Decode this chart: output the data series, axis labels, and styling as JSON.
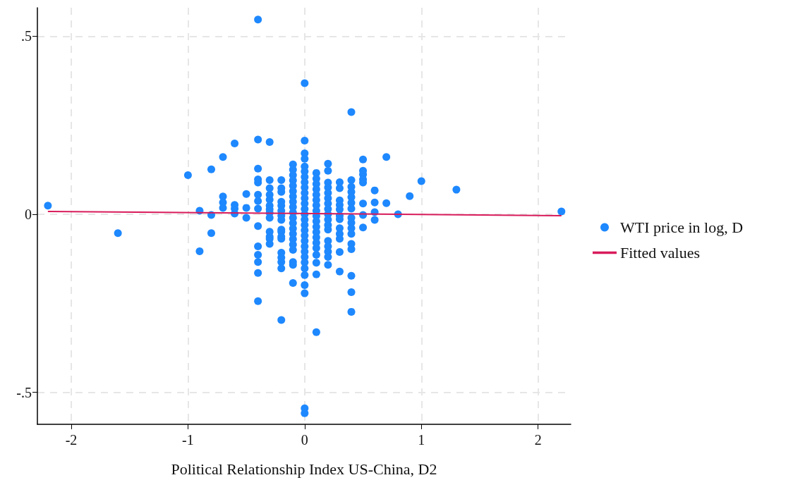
{
  "chart_data": {
    "type": "scatter",
    "xlabel": "Political Relationship Index US-China, D2",
    "xlim": [
      -2.29,
      2.28
    ],
    "xticks": [
      -2,
      -1,
      0,
      1,
      2
    ],
    "ylim": [
      -0.59,
      0.58
    ],
    "yticks": [
      {
        "value": -0.5,
        "label": "-.5"
      },
      0,
      {
        "value": 0.5,
        "label": ".5"
      }
    ],
    "grid": true,
    "legend": "right",
    "series": [
      {
        "name": "WTI price in log, D",
        "marker": "circle",
        "color": "#1e88ff",
        "x": [
          -2.2,
          -1.6,
          -1.0,
          -0.9,
          -0.9,
          -0.8,
          -0.8,
          -0.8,
          -0.7,
          -0.7,
          -0.7,
          -0.7,
          -0.6,
          -0.6,
          -0.6,
          -0.6,
          -0.5,
          -0.5,
          -0.5,
          -0.4,
          -0.4,
          -0.4,
          -0.4,
          -0.4,
          -0.4,
          -0.4,
          -0.4,
          -0.4,
          -0.4,
          -0.4,
          -0.4,
          -0.4,
          -0.4,
          -0.3,
          -0.3,
          -0.3,
          -0.3,
          -0.3,
          -0.3,
          -0.3,
          -0.3,
          -0.3,
          -0.3,
          -0.3,
          -0.3,
          -0.3,
          -0.2,
          -0.2,
          -0.2,
          -0.2,
          -0.2,
          -0.2,
          -0.2,
          -0.2,
          -0.2,
          -0.2,
          -0.2,
          -0.2,
          -0.2,
          -0.2,
          -0.2,
          -0.2,
          -0.2,
          -0.1,
          -0.1,
          -0.1,
          -0.1,
          -0.1,
          -0.1,
          -0.1,
          -0.1,
          -0.1,
          -0.1,
          -0.1,
          -0.1,
          -0.1,
          -0.1,
          -0.1,
          -0.1,
          -0.1,
          -0.1,
          -0.1,
          -0.1,
          0,
          0,
          0,
          0,
          0,
          0,
          0,
          0,
          0,
          0,
          0,
          0,
          0,
          0,
          0,
          0,
          0,
          0,
          0,
          0,
          0,
          0,
          0,
          0,
          0,
          0,
          0,
          0,
          0,
          0.1,
          0.1,
          0.1,
          0.1,
          0.1,
          0.1,
          0.1,
          0.1,
          0.1,
          0.1,
          0.1,
          0.1,
          0.1,
          0.1,
          0.1,
          0.1,
          0.1,
          0.1,
          0.1,
          0.2,
          0.2,
          0.2,
          0.2,
          0.2,
          0.2,
          0.2,
          0.2,
          0.2,
          0.2,
          0.2,
          0.2,
          0.2,
          0.2,
          0.2,
          0.2,
          0.2,
          0.3,
          0.3,
          0.3,
          0.3,
          0.3,
          0.3,
          0.3,
          0.3,
          0.3,
          0.3,
          0.3,
          0.3,
          0.4,
          0.4,
          0.4,
          0.4,
          0.4,
          0.4,
          0.4,
          0.4,
          0.4,
          0.4,
          0.4,
          0.4,
          0.4,
          0.4,
          0.4,
          0.4,
          0.5,
          0.5,
          0.5,
          0.5,
          0.5,
          0.5,
          0.5,
          0.5,
          0.6,
          0.6,
          0.6,
          0.6,
          0.7,
          0.7,
          0.8,
          0.9,
          1.0,
          1.3,
          2.2
        ],
        "values": [
          0.024,
          -0.053,
          0.11,
          0.01,
          -0.104,
          0.126,
          -0.002,
          -0.053,
          0.161,
          0.05,
          0.033,
          0.018,
          0.199,
          0.026,
          0.016,
          0.002,
          0.057,
          0.018,
          -0.01,
          0.547,
          0.21,
          0.128,
          0.098,
          0.089,
          0.055,
          0.037,
          0.016,
          -0.033,
          -0.09,
          -0.114,
          -0.134,
          -0.165,
          -0.244,
          0.203,
          0.096,
          0.073,
          0.055,
          0.041,
          0.024,
          0.014,
          0.004,
          -0.01,
          -0.049,
          -0.063,
          -0.069,
          -0.083,
          0.096,
          0.073,
          0.063,
          0.035,
          0.024,
          0.01,
          -0.004,
          -0.016,
          -0.043,
          -0.049,
          -0.063,
          -0.069,
          -0.108,
          -0.122,
          -0.134,
          -0.152,
          -0.297,
          0.14,
          0.125,
          0.11,
          0.095,
          0.08,
          0.065,
          0.05,
          0.035,
          0.02,
          0.005,
          -0.01,
          -0.025,
          -0.04,
          -0.055,
          -0.07,
          -0.085,
          -0.1,
          -0.134,
          -0.142,
          -0.193,
          0.368,
          0.207,
          0.171,
          0.156,
          0.134,
          0.12,
          0.105,
          0.09,
          0.075,
          0.06,
          0.045,
          0.03,
          0.015,
          0,
          -0.015,
          -0.03,
          -0.045,
          -0.06,
          -0.075,
          -0.09,
          -0.105,
          -0.12,
          -0.135,
          -0.152,
          -0.171,
          -0.199,
          -0.222,
          -0.545,
          -0.559,
          0.116,
          0.1,
          0.085,
          0.07,
          0.055,
          0.04,
          0.025,
          0.01,
          -0.005,
          -0.02,
          -0.035,
          -0.05,
          -0.065,
          -0.08,
          -0.095,
          -0.114,
          -0.136,
          -0.169,
          -0.331,
          0.142,
          0.122,
          0.089,
          0.075,
          0.06,
          0.045,
          0.03,
          0.015,
          0,
          -0.015,
          -0.03,
          -0.043,
          -0.075,
          -0.09,
          -0.105,
          -0.12,
          -0.142,
          0.09,
          0.073,
          0.039,
          0.026,
          0.014,
          -0.004,
          -0.014,
          -0.039,
          -0.055,
          -0.069,
          -0.106,
          -0.161,
          0.287,
          0.096,
          0.077,
          0.063,
          0.048,
          0.032,
          0.016,
          -0.01,
          -0.024,
          -0.039,
          -0.055,
          -0.083,
          -0.098,
          -0.173,
          -0.219,
          -0.274,
          0.154,
          0.122,
          0.112,
          0.098,
          0.089,
          0.03,
          -0.002,
          -0.037,
          0.067,
          0.033,
          0.006,
          -0.016,
          0.161,
          0.031,
          0,
          0.051,
          0.093,
          0.069,
          0.008
        ]
      },
      {
        "name": "Fitted values",
        "type": "line",
        "marker": "none",
        "color": "#d81b5a",
        "x": [
          -2.2,
          2.2
        ],
        "values": [
          0.008,
          -0.004
        ]
      }
    ]
  }
}
